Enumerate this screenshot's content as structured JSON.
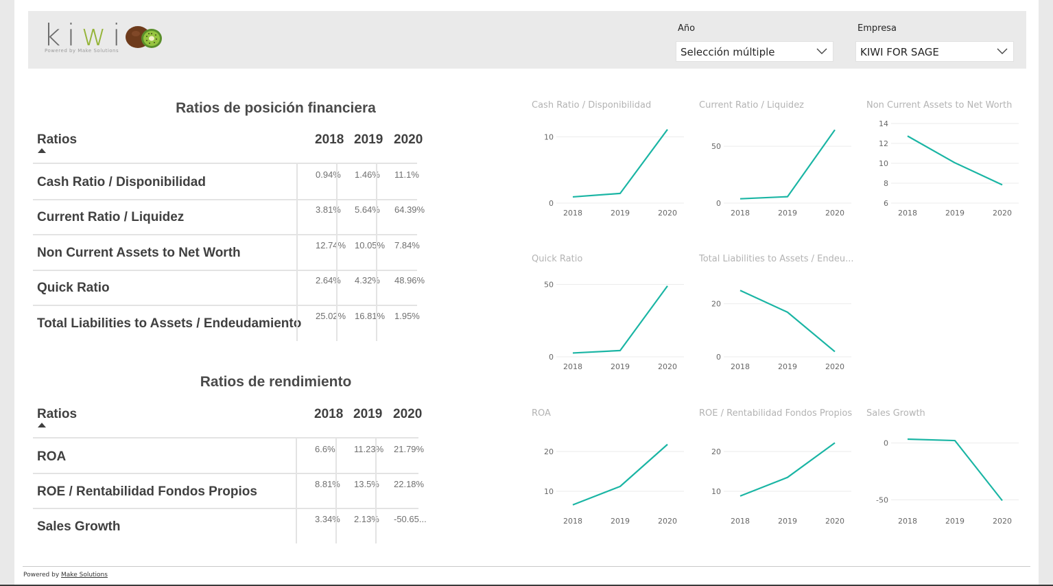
{
  "brand": {
    "logo_text": "kiwi",
    "logo_tagline": "Powered by Make Solutions",
    "logo_icon": "kiwi-fruit-icon",
    "accent": "#95b43a"
  },
  "filters": {
    "year": {
      "label": "Año",
      "value": "Selección múltiple"
    },
    "company": {
      "label": "Empresa",
      "value": "KIWI FOR SAGE"
    }
  },
  "financial_position": {
    "title": "Ratios de posición financiera",
    "header": {
      "name": "Ratios",
      "years": [
        "2018",
        "2019",
        "2020"
      ]
    },
    "rows": [
      {
        "name": "Cash Ratio / Disponibilidad",
        "values": [
          "0.94%",
          "1.46%",
          "11.1%"
        ]
      },
      {
        "name": "Current Ratio / Liquidez",
        "values": [
          "3.81%",
          "5.64%",
          "64.39%"
        ]
      },
      {
        "name": "Non Current Assets to Net Worth",
        "values": [
          "12.74%",
          "10.05%",
          "7.84%"
        ]
      },
      {
        "name": "Quick Ratio",
        "values": [
          "2.64%",
          "4.32%",
          "48.96%"
        ]
      },
      {
        "name": "Total Liabilities to Assets / Endeudamiento",
        "values": [
          "25.02%",
          "16.81%",
          "1.95%"
        ]
      }
    ]
  },
  "performance": {
    "title": "Ratios de rendimiento",
    "header": {
      "name": "Ratios",
      "years": [
        "2018",
        "2019",
        "2020"
      ]
    },
    "rows": [
      {
        "name": "ROA",
        "values": [
          "6.6%",
          "11.23%",
          "21.79%"
        ]
      },
      {
        "name": "ROE / Rentabilidad Fondos Propios",
        "values": [
          "8.81%",
          "13.5%",
          "22.18%"
        ]
      },
      {
        "name": "Sales Growth",
        "values": [
          "3.34%",
          "2.13%",
          "-50.65..."
        ]
      }
    ]
  },
  "chart_data": [
    {
      "type": "line",
      "title": "Cash Ratio / Disponibilidad",
      "x": [
        "2018",
        "2019",
        "2020"
      ],
      "values": [
        0.94,
        1.46,
        11.1
      ],
      "ylim": [
        0,
        12
      ],
      "yticks": [
        0,
        10
      ],
      "grid": true,
      "color": "#1ab5a4"
    },
    {
      "type": "line",
      "title": "Current Ratio / Liquidez",
      "x": [
        "2018",
        "2019",
        "2020"
      ],
      "values": [
        3.81,
        5.64,
        64.39
      ],
      "ylim": [
        0,
        70
      ],
      "yticks": [
        0,
        50
      ],
      "grid": true,
      "color": "#1ab5a4"
    },
    {
      "type": "line",
      "title": "Non Current Assets to Net Worth",
      "x": [
        "2018",
        "2019",
        "2020"
      ],
      "values": [
        12.74,
        10.05,
        7.84
      ],
      "ylim": [
        6,
        14
      ],
      "yticks": [
        6,
        8,
        10,
        12,
        14
      ],
      "grid": true,
      "color": "#1ab5a4"
    },
    {
      "type": "line",
      "title": "Quick Ratio",
      "x": [
        "2018",
        "2019",
        "2020"
      ],
      "values": [
        2.64,
        4.32,
        48.96
      ],
      "ylim": [
        0,
        55
      ],
      "yticks": [
        0,
        50
      ],
      "grid": true,
      "color": "#1ab5a4"
    },
    {
      "type": "line",
      "title": "Total Liabilities to Assets / Endeu...",
      "x": [
        "2018",
        "2019",
        "2020"
      ],
      "values": [
        25.02,
        16.81,
        1.95
      ],
      "ylim": [
        0,
        30
      ],
      "yticks": [
        0,
        20
      ],
      "grid": true,
      "color": "#1ab5a4"
    },
    {
      "type": "line",
      "title": "ROA",
      "x": [
        "2018",
        "2019",
        "2020"
      ],
      "values": [
        6.6,
        11.23,
        21.79
      ],
      "ylim": [
        5,
        25
      ],
      "yticks": [
        10,
        20
      ],
      "grid": true,
      "color": "#1ab5a4"
    },
    {
      "type": "line",
      "title": "ROE / Rentabilidad Fondos Propios",
      "x": [
        "2018",
        "2019",
        "2020"
      ],
      "values": [
        8.81,
        13.5,
        22.18
      ],
      "ylim": [
        5,
        25
      ],
      "yticks": [
        10,
        20
      ],
      "grid": true,
      "color": "#1ab5a4"
    },
    {
      "type": "line",
      "title": "Sales Growth",
      "x": [
        "2018",
        "2019",
        "2020"
      ],
      "values": [
        3.34,
        2.13,
        -50.65
      ],
      "ylim": [
        -60,
        10
      ],
      "yticks": [
        -50,
        0
      ],
      "grid": true,
      "color": "#1ab5a4"
    }
  ],
  "footer": {
    "prefix": "Powered by ",
    "link": "Make Solutions"
  }
}
